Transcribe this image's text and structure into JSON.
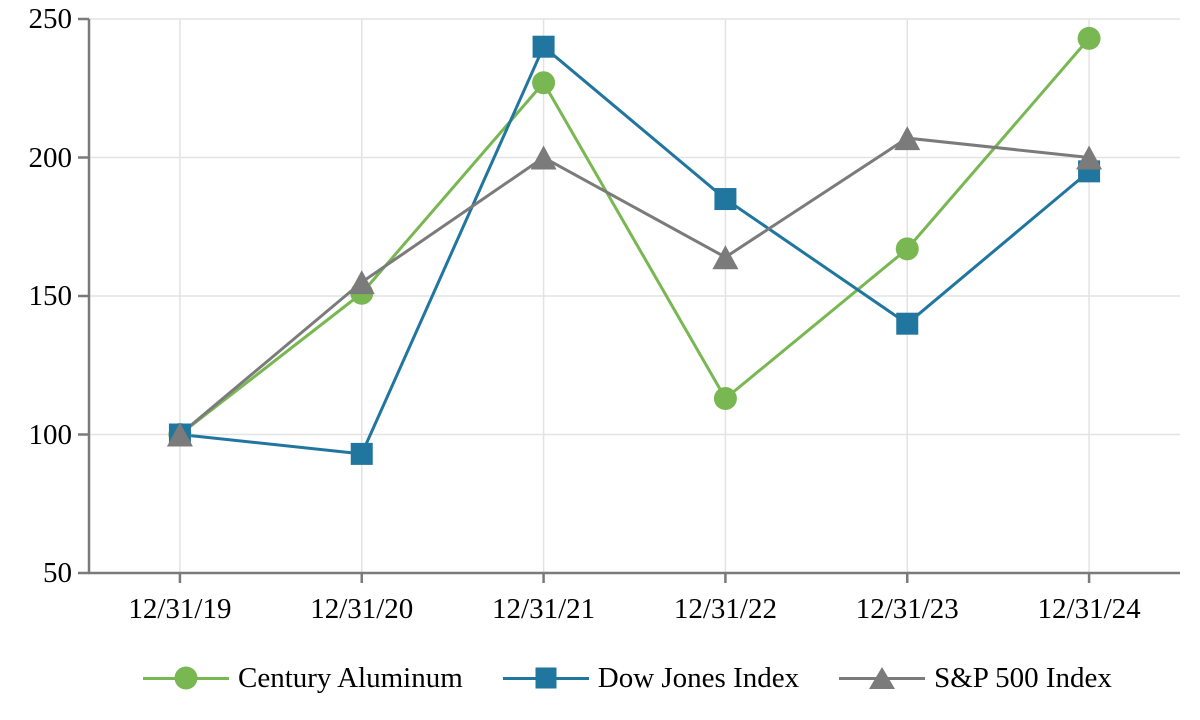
{
  "chart_data": {
    "type": "line",
    "title": "",
    "categories": [
      "12/31/19",
      "12/31/20",
      "12/31/21",
      "12/31/22",
      "12/31/23",
      "12/31/24"
    ],
    "x_tick_labels": [
      "12/31/19",
      "12/31/20",
      "12/31/21",
      "12/31/22",
      "12/31/23",
      "12/31/24"
    ],
    "y_ticks": [
      50,
      100,
      150,
      200,
      250
    ],
    "ylim": [
      50,
      250
    ],
    "grid": {
      "horizontal": true,
      "vertical": true
    },
    "legend_position": "bottom",
    "series": [
      {
        "name": "Century Aluminum",
        "marker": "circle",
        "color": "#79b752",
        "values": [
          100,
          151,
          227,
          113,
          167,
          243
        ]
      },
      {
        "name": "Dow Jones Index",
        "marker": "square",
        "color": "#2176a0",
        "values": [
          100,
          93,
          240,
          185,
          140,
          195
        ]
      },
      {
        "name": "S&P 500 Index",
        "marker": "triangle",
        "color": "#7b7b7b",
        "values": [
          100,
          155,
          200,
          164,
          207,
          200
        ]
      }
    ],
    "axis_color": "#7a7a7a",
    "grid_color": "#e3e3e3",
    "text_color": "#000000",
    "background": "#ffffff"
  }
}
